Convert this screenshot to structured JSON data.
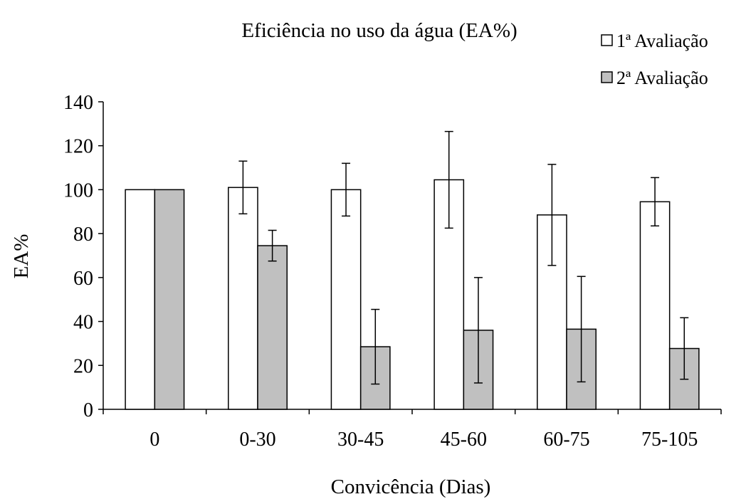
{
  "chart_data": {
    "type": "bar",
    "title": "Eficiência  no uso da água (EA%)",
    "xlabel": "Convicência (Dias)",
    "ylabel": "EA%",
    "categories": [
      "0",
      "0-30",
      "30-45",
      "45-60",
      "60-75",
      "75-105"
    ],
    "ylim": [
      0,
      140
    ],
    "yticks": [
      0,
      20,
      40,
      60,
      80,
      100,
      120,
      140
    ],
    "grid": false,
    "legend_position": "top-right",
    "series": [
      {
        "name": "1ª Avaliação",
        "color": "#ffffff",
        "values": [
          100,
          101,
          100,
          104.5,
          88.5,
          94.5
        ],
        "error": [
          0,
          12,
          12,
          22,
          23,
          11
        ]
      },
      {
        "name": "2ª Avaliação",
        "color": "#c0c0c0",
        "values": [
          100,
          74.5,
          28.5,
          36,
          36.5,
          27.7
        ],
        "error": [
          0,
          7,
          17,
          24,
          24,
          14
        ]
      }
    ]
  }
}
